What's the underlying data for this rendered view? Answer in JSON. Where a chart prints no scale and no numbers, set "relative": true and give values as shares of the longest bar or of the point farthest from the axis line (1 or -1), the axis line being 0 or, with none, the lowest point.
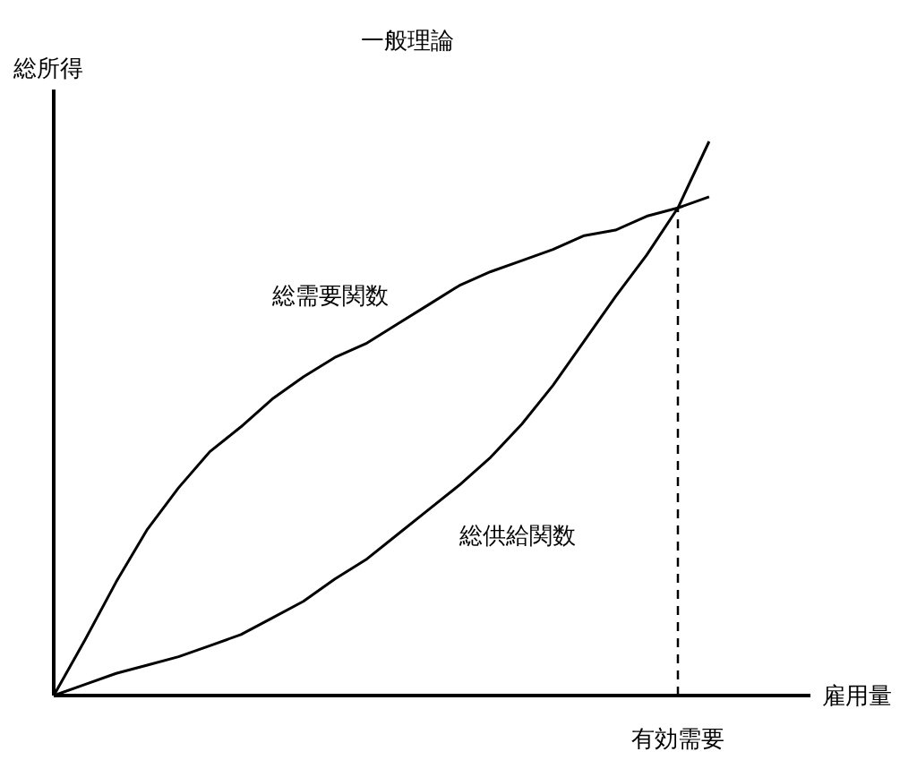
{
  "chart_data": {
    "type": "line",
    "title": "一般理論",
    "ylabel": "総所得",
    "xlabel": "雇用量",
    "relative": true,
    "categories": [
      null,
      null,
      null,
      null,
      null,
      null,
      null,
      null,
      null,
      null,
      null,
      null,
      null,
      null,
      null,
      null,
      null,
      null,
      null,
      null,
      null,
      null
    ],
    "series": [
      {
        "name": "総需要関数",
        "color": "#000000",
        "values": [
          0,
          0.1,
          0.205,
          0.3,
          0.375,
          0.44,
          0.485,
          0.535,
          0.575,
          0.61,
          0.635,
          0.67,
          0.705,
          0.74,
          0.765,
          0.785,
          0.805,
          0.83,
          0.84,
          0.865,
          0.88,
          0.9
        ]
      },
      {
        "name": "総供給関数",
        "color": "#000000",
        "values": [
          0,
          0.02,
          0.04,
          0.055,
          0.07,
          0.09,
          0.11,
          0.14,
          0.17,
          0.21,
          0.245,
          0.29,
          0.335,
          0.38,
          0.43,
          0.49,
          0.56,
          0.64,
          0.72,
          0.795,
          0.88,
          1
        ]
      }
    ],
    "annotations": [
      "有効需要"
    ]
  }
}
